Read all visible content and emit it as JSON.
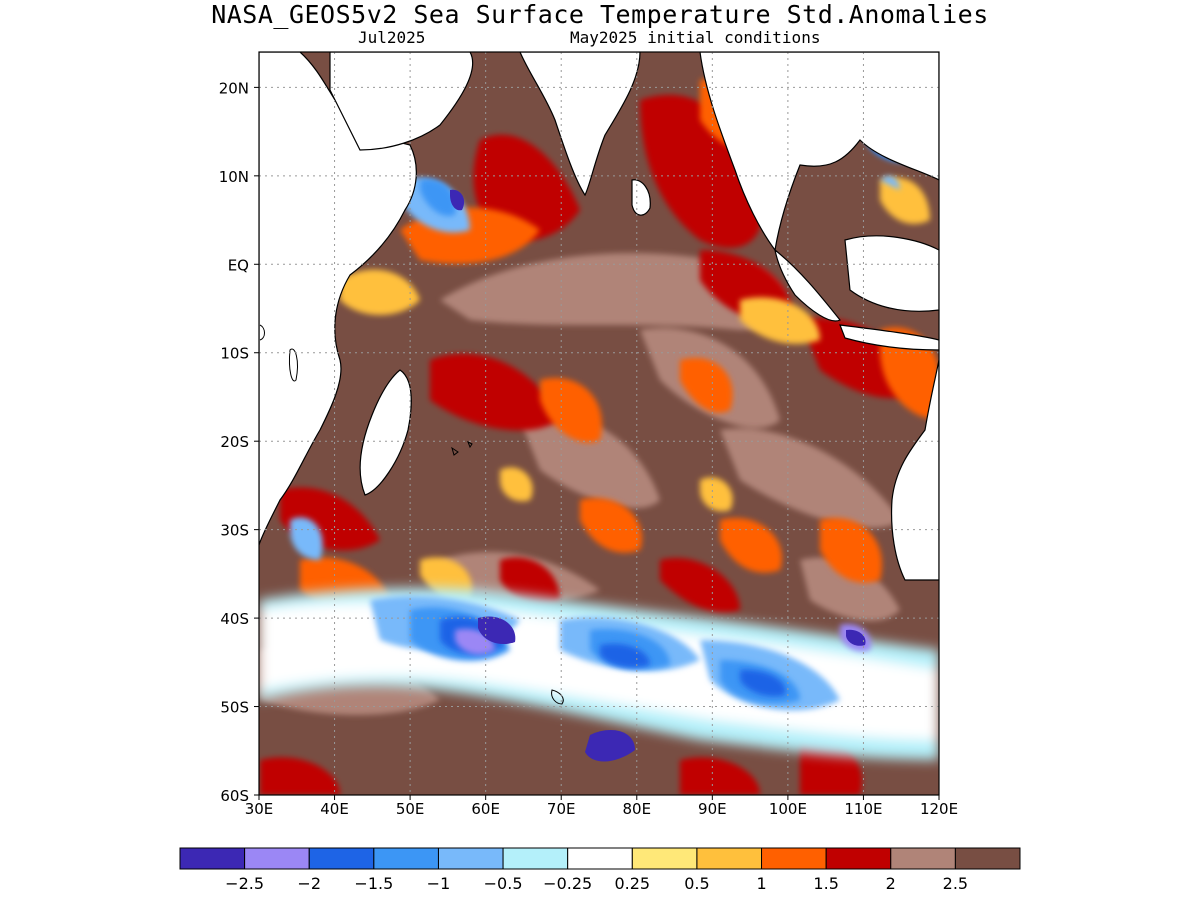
{
  "title": "NASA_GEOS5v2 Sea Surface Temperature Std.Anomalies",
  "subtitle_left": "Jul2025",
  "subtitle_right": "May2025 initial conditions",
  "map": {
    "lon_range": [
      30,
      120
    ],
    "lat_range": [
      -60,
      24
    ],
    "lon_ticks": [
      {
        "value": 30,
        "label": "30E"
      },
      {
        "value": 40,
        "label": "40E"
      },
      {
        "value": 50,
        "label": "50E"
      },
      {
        "value": 60,
        "label": "60E"
      },
      {
        "value": 70,
        "label": "70E"
      },
      {
        "value": 80,
        "label": "80E"
      },
      {
        "value": 90,
        "label": "90E"
      },
      {
        "value": 100,
        "label": "100E"
      },
      {
        "value": 110,
        "label": "110E"
      },
      {
        "value": 120,
        "label": "120E"
      }
    ],
    "lat_ticks": [
      {
        "value": 20,
        "label": "20N"
      },
      {
        "value": 10,
        "label": "10N"
      },
      {
        "value": 0,
        "label": "EQ"
      },
      {
        "value": -10,
        "label": "10S"
      },
      {
        "value": -20,
        "label": "20S"
      },
      {
        "value": -30,
        "label": "30S"
      },
      {
        "value": -40,
        "label": "40S"
      },
      {
        "value": -50,
        "label": "50S"
      },
      {
        "value": -60,
        "label": "60S"
      }
    ],
    "land_color": "#ffffff",
    "coast_color": "#000000"
  },
  "colorbar": {
    "colors": [
      "#3c28b4",
      "#9b87f5",
      "#1e64e6",
      "#3c96f5",
      "#78b9fa",
      "#b4f0fa",
      "#ffffff",
      "#ffe878",
      "#ffc03c",
      "#ff6000",
      "#c00000",
      "#b08478",
      "#784e43"
    ],
    "labels": [
      "-2.5",
      "-2",
      "-1.5",
      "-1",
      "-0.5",
      "-0.25",
      "0.25",
      "0.5",
      "1",
      "1.5",
      "2",
      "2.5"
    ]
  }
}
